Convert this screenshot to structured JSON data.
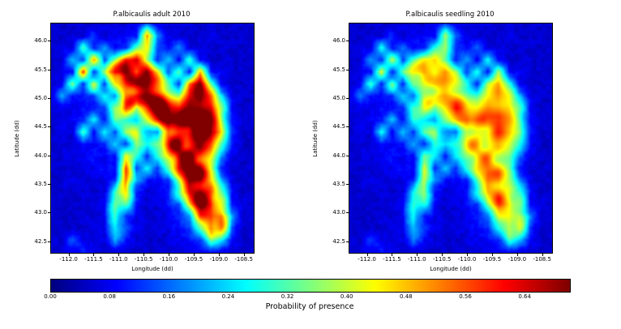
{
  "colorbar": {
    "label": "Probability of presence",
    "ticks": [
      "0.00",
      "0.08",
      "0.16",
      "0.24",
      "0.32",
      "0.40",
      "0.48",
      "0.56",
      "0.64"
    ],
    "vmin": 0.0,
    "vmax": 0.7
  },
  "chart_data": [
    {
      "type": "heatmap",
      "title": "P.albicaulis adult 2010",
      "xlabel": "Longitude (dd)",
      "ylabel": "Latitude (dd)",
      "colormap": "jet",
      "vmin": 0.0,
      "vmax": 0.7,
      "x_range": [
        -112.35,
        -108.3
      ],
      "y_range": [
        42.3,
        46.3
      ],
      "x_ticks": [
        -112.0,
        -111.5,
        -111.0,
        -110.5,
        -110.0,
        -109.5,
        -109.0,
        -108.5
      ],
      "y_ticks": [
        46.0,
        45.5,
        45.0,
        44.5,
        44.0,
        43.5,
        43.0,
        42.5
      ],
      "values": [
        [
          0.02,
          0.02,
          0.02,
          0.02,
          0.02,
          0.03,
          0.02,
          0.02,
          0.04,
          0.1,
          0.04,
          0.02,
          0.02,
          0.03,
          0.02,
          0.02,
          0.02,
          0.02,
          0.02,
          0.02
        ],
        [
          0.02,
          0.02,
          0.03,
          0.02,
          0.08,
          0.03,
          0.04,
          0.05,
          0.06,
          0.55,
          0.15,
          0.04,
          0.03,
          0.02,
          0.02,
          0.03,
          0.02,
          0.02,
          0.02,
          0.02
        ],
        [
          0.02,
          0.03,
          0.04,
          0.3,
          0.06,
          0.15,
          0.05,
          0.08,
          0.3,
          0.4,
          0.1,
          0.05,
          0.15,
          0.04,
          0.03,
          0.02,
          0.02,
          0.02,
          0.02,
          0.02
        ],
        [
          0.02,
          0.02,
          0.2,
          0.1,
          0.5,
          0.08,
          0.3,
          0.55,
          0.6,
          0.3,
          0.08,
          0.2,
          0.06,
          0.3,
          0.05,
          0.02,
          0.02,
          0.02,
          0.02,
          0.02
        ],
        [
          0.02,
          0.03,
          0.05,
          0.6,
          0.1,
          0.3,
          0.6,
          0.7,
          0.5,
          0.6,
          0.4,
          0.1,
          0.3,
          0.08,
          0.5,
          0.06,
          0.03,
          0.02,
          0.02,
          0.02
        ],
        [
          0.02,
          0.04,
          0.3,
          0.08,
          0.4,
          0.1,
          0.5,
          0.65,
          0.7,
          0.65,
          0.5,
          0.3,
          0.1,
          0.6,
          0.7,
          0.3,
          0.04,
          0.02,
          0.02,
          0.02
        ],
        [
          0.03,
          0.15,
          0.05,
          0.06,
          0.08,
          0.3,
          0.2,
          0.6,
          0.65,
          0.7,
          0.65,
          0.5,
          0.4,
          0.65,
          0.7,
          0.5,
          0.2,
          0.03,
          0.02,
          0.02
        ],
        [
          0.02,
          0.04,
          0.03,
          0.05,
          0.06,
          0.1,
          0.4,
          0.55,
          0.3,
          0.5,
          0.7,
          0.65,
          0.6,
          0.7,
          0.7,
          0.6,
          0.3,
          0.05,
          0.02,
          0.02
        ],
        [
          0.02,
          0.03,
          0.04,
          0.06,
          0.2,
          0.08,
          0.3,
          0.25,
          0.2,
          0.35,
          0.5,
          0.7,
          0.7,
          0.65,
          0.7,
          0.65,
          0.4,
          0.08,
          0.02,
          0.02
        ],
        [
          0.02,
          0.05,
          0.03,
          0.3,
          0.06,
          0.25,
          0.1,
          0.3,
          0.35,
          0.25,
          0.15,
          0.6,
          0.7,
          0.7,
          0.7,
          0.7,
          0.5,
          0.1,
          0.03,
          0.02
        ],
        [
          0.02,
          0.03,
          0.02,
          0.05,
          0.04,
          0.06,
          0.2,
          0.1,
          0.45,
          0.3,
          0.4,
          0.55,
          0.7,
          0.7,
          0.7,
          0.6,
          0.3,
          0.06,
          0.02,
          0.02
        ],
        [
          0.02,
          0.02,
          0.03,
          0.04,
          0.05,
          0.04,
          0.08,
          0.5,
          0.3,
          0.1,
          0.3,
          0.5,
          0.65,
          0.7,
          0.7,
          0.5,
          0.2,
          0.04,
          0.02,
          0.02
        ],
        [
          0.02,
          0.02,
          0.02,
          0.03,
          0.04,
          0.05,
          0.06,
          0.6,
          0.1,
          0.2,
          0.08,
          0.3,
          0.6,
          0.7,
          0.65,
          0.4,
          0.08,
          0.03,
          0.02,
          0.02
        ],
        [
          0.02,
          0.02,
          0.03,
          0.02,
          0.03,
          0.04,
          0.08,
          0.55,
          0.2,
          0.06,
          0.05,
          0.1,
          0.4,
          0.7,
          0.7,
          0.45,
          0.2,
          0.04,
          0.02,
          0.02
        ],
        [
          0.02,
          0.02,
          0.02,
          0.03,
          0.02,
          0.04,
          0.3,
          0.45,
          0.08,
          0.04,
          0.05,
          0.08,
          0.3,
          0.65,
          0.7,
          0.6,
          0.3,
          0.05,
          0.02,
          0.02
        ],
        [
          0.02,
          0.02,
          0.02,
          0.02,
          0.03,
          0.04,
          0.35,
          0.3,
          0.06,
          0.03,
          0.04,
          0.06,
          0.1,
          0.5,
          0.7,
          0.7,
          0.4,
          0.06,
          0.03,
          0.02
        ],
        [
          0.02,
          0.02,
          0.02,
          0.03,
          0.02,
          0.03,
          0.3,
          0.1,
          0.04,
          0.03,
          0.03,
          0.04,
          0.08,
          0.2,
          0.6,
          0.7,
          0.6,
          0.2,
          0.03,
          0.02
        ],
        [
          0.02,
          0.02,
          0.02,
          0.02,
          0.03,
          0.03,
          0.25,
          0.15,
          0.04,
          0.02,
          0.03,
          0.03,
          0.05,
          0.1,
          0.4,
          0.65,
          0.5,
          0.1,
          0.02,
          0.02
        ],
        [
          0.02,
          0.02,
          0.1,
          0.03,
          0.02,
          0.03,
          0.15,
          0.06,
          0.03,
          0.02,
          0.02,
          0.03,
          0.04,
          0.06,
          0.1,
          0.3,
          0.2,
          0.05,
          0.02,
          0.02
        ],
        [
          0.02,
          0.02,
          0.04,
          0.08,
          0.03,
          0.02,
          0.04,
          0.03,
          0.02,
          0.02,
          0.02,
          0.02,
          0.03,
          0.04,
          0.05,
          0.08,
          0.06,
          0.03,
          0.02,
          0.02
        ]
      ]
    },
    {
      "type": "heatmap",
      "title": "P.albicaulis seedling 2010",
      "xlabel": "Longitude (dd)",
      "ylabel": "Latitude (dd)",
      "colormap": "jet",
      "vmin": 0.0,
      "vmax": 0.7,
      "x_range": [
        -112.35,
        -108.3
      ],
      "y_range": [
        42.3,
        46.3
      ],
      "x_ticks": [
        -112.0,
        -111.5,
        -111.0,
        -110.5,
        -110.0,
        -109.5,
        -109.0,
        -108.5
      ],
      "y_ticks": [
        46.0,
        45.5,
        45.0,
        44.5,
        44.0,
        43.5,
        43.0,
        42.5
      ],
      "values": [
        [
          0.02,
          0.02,
          0.02,
          0.02,
          0.02,
          0.03,
          0.02,
          0.02,
          0.04,
          0.08,
          0.04,
          0.02,
          0.02,
          0.03,
          0.02,
          0.02,
          0.02,
          0.02,
          0.02,
          0.02
        ],
        [
          0.02,
          0.02,
          0.03,
          0.02,
          0.07,
          0.03,
          0.04,
          0.05,
          0.05,
          0.4,
          0.12,
          0.04,
          0.03,
          0.02,
          0.02,
          0.03,
          0.02,
          0.02,
          0.02,
          0.02
        ],
        [
          0.02,
          0.03,
          0.04,
          0.26,
          0.05,
          0.12,
          0.05,
          0.07,
          0.26,
          0.33,
          0.08,
          0.05,
          0.12,
          0.04,
          0.03,
          0.02,
          0.02,
          0.02,
          0.02,
          0.02
        ],
        [
          0.02,
          0.02,
          0.17,
          0.08,
          0.38,
          0.07,
          0.26,
          0.4,
          0.43,
          0.26,
          0.07,
          0.17,
          0.05,
          0.26,
          0.05,
          0.02,
          0.02,
          0.02,
          0.02,
          0.02
        ],
        [
          0.02,
          0.03,
          0.05,
          0.43,
          0.08,
          0.26,
          0.43,
          0.48,
          0.38,
          0.43,
          0.33,
          0.08,
          0.26,
          0.07,
          0.38,
          0.05,
          0.03,
          0.02,
          0.02,
          0.02
        ],
        [
          0.02,
          0.04,
          0.26,
          0.07,
          0.33,
          0.08,
          0.38,
          0.45,
          0.48,
          0.45,
          0.38,
          0.26,
          0.08,
          0.43,
          0.48,
          0.26,
          0.04,
          0.02,
          0.02,
          0.02
        ],
        [
          0.03,
          0.12,
          0.05,
          0.05,
          0.07,
          0.26,
          0.17,
          0.43,
          0.45,
          0.48,
          0.45,
          0.38,
          0.33,
          0.45,
          0.48,
          0.38,
          0.17,
          0.03,
          0.02,
          0.02
        ],
        [
          0.02,
          0.04,
          0.03,
          0.05,
          0.05,
          0.08,
          0.33,
          0.4,
          0.26,
          0.38,
          0.5,
          0.45,
          0.43,
          0.5,
          0.5,
          0.43,
          0.26,
          0.05,
          0.02,
          0.02
        ],
        [
          0.02,
          0.03,
          0.04,
          0.05,
          0.17,
          0.07,
          0.26,
          0.21,
          0.17,
          0.3,
          0.38,
          0.5,
          0.5,
          0.45,
          0.48,
          0.45,
          0.33,
          0.07,
          0.02,
          0.02
        ],
        [
          0.02,
          0.05,
          0.03,
          0.26,
          0.05,
          0.21,
          0.08,
          0.26,
          0.3,
          0.21,
          0.12,
          0.43,
          0.5,
          0.48,
          0.5,
          0.48,
          0.38,
          0.08,
          0.03,
          0.02
        ],
        [
          0.02,
          0.03,
          0.02,
          0.05,
          0.04,
          0.05,
          0.17,
          0.08,
          0.35,
          0.26,
          0.33,
          0.4,
          0.48,
          0.5,
          0.48,
          0.43,
          0.26,
          0.05,
          0.02,
          0.02
        ],
        [
          0.02,
          0.02,
          0.03,
          0.04,
          0.05,
          0.04,
          0.07,
          0.38,
          0.26,
          0.08,
          0.26,
          0.38,
          0.45,
          0.48,
          0.48,
          0.38,
          0.17,
          0.04,
          0.02,
          0.02
        ],
        [
          0.02,
          0.02,
          0.02,
          0.03,
          0.04,
          0.05,
          0.05,
          0.43,
          0.08,
          0.17,
          0.07,
          0.26,
          0.43,
          0.48,
          0.45,
          0.33,
          0.07,
          0.03,
          0.02,
          0.02
        ],
        [
          0.02,
          0.02,
          0.03,
          0.02,
          0.03,
          0.04,
          0.07,
          0.4,
          0.17,
          0.05,
          0.05,
          0.08,
          0.33,
          0.52,
          0.52,
          0.35,
          0.17,
          0.04,
          0.02,
          0.02
        ],
        [
          0.02,
          0.02,
          0.02,
          0.03,
          0.02,
          0.04,
          0.26,
          0.35,
          0.07,
          0.04,
          0.05,
          0.07,
          0.26,
          0.5,
          0.52,
          0.43,
          0.26,
          0.05,
          0.02,
          0.02
        ],
        [
          0.02,
          0.02,
          0.02,
          0.02,
          0.03,
          0.04,
          0.3,
          0.26,
          0.05,
          0.03,
          0.04,
          0.05,
          0.08,
          0.38,
          0.52,
          0.52,
          0.33,
          0.05,
          0.03,
          0.02
        ],
        [
          0.02,
          0.02,
          0.02,
          0.03,
          0.02,
          0.03,
          0.26,
          0.08,
          0.04,
          0.03,
          0.03,
          0.04,
          0.07,
          0.17,
          0.43,
          0.52,
          0.43,
          0.17,
          0.03,
          0.02
        ],
        [
          0.02,
          0.02,
          0.02,
          0.02,
          0.03,
          0.03,
          0.21,
          0.12,
          0.04,
          0.02,
          0.03,
          0.03,
          0.05,
          0.08,
          0.33,
          0.48,
          0.38,
          0.08,
          0.02,
          0.02
        ],
        [
          0.02,
          0.02,
          0.08,
          0.03,
          0.02,
          0.03,
          0.12,
          0.05,
          0.03,
          0.02,
          0.02,
          0.03,
          0.04,
          0.05,
          0.08,
          0.26,
          0.17,
          0.05,
          0.02,
          0.02
        ],
        [
          0.02,
          0.02,
          0.04,
          0.07,
          0.03,
          0.02,
          0.04,
          0.03,
          0.02,
          0.02,
          0.02,
          0.02,
          0.03,
          0.04,
          0.05,
          0.07,
          0.05,
          0.03,
          0.02,
          0.02
        ]
      ]
    }
  ]
}
